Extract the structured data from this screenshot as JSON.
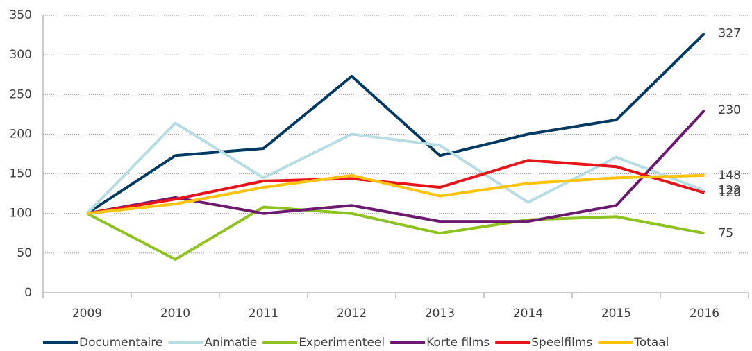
{
  "chart_data": {
    "type": "line",
    "categories": [
      "2009",
      "2010",
      "2011",
      "2012",
      "2013",
      "2014",
      "2015",
      "2016"
    ],
    "series": [
      {
        "name": "Documentaire",
        "color": "#003a63",
        "values": [
          100,
          173,
          182,
          273,
          173,
          200,
          218,
          327
        ]
      },
      {
        "name": "Animatie",
        "color": "#b7dde3",
        "values": [
          100,
          214,
          145,
          200,
          186,
          114,
          171,
          129
        ]
      },
      {
        "name": "Experimenteel",
        "color": "#8dc21f",
        "values": [
          100,
          42,
          108,
          100,
          75,
          92,
          96,
          75
        ]
      },
      {
        "name": "Korte films",
        "color": "#6c1a6f",
        "values": [
          100,
          120,
          100,
          110,
          90,
          90,
          110,
          230
        ]
      },
      {
        "name": "Speelfilms",
        "color": "#e8141b",
        "values": [
          100,
          118,
          141,
          144,
          133,
          167,
          159,
          126
        ]
      },
      {
        "name": "Totaal",
        "color": "#ffc20e",
        "values": [
          100,
          112,
          133,
          148,
          122,
          138,
          145,
          148
        ]
      }
    ],
    "ylim": [
      0,
      350
    ],
    "yticks": [
      0,
      50,
      100,
      150,
      200,
      250,
      300,
      350
    ],
    "grid": true,
    "legend": "bottom"
  }
}
